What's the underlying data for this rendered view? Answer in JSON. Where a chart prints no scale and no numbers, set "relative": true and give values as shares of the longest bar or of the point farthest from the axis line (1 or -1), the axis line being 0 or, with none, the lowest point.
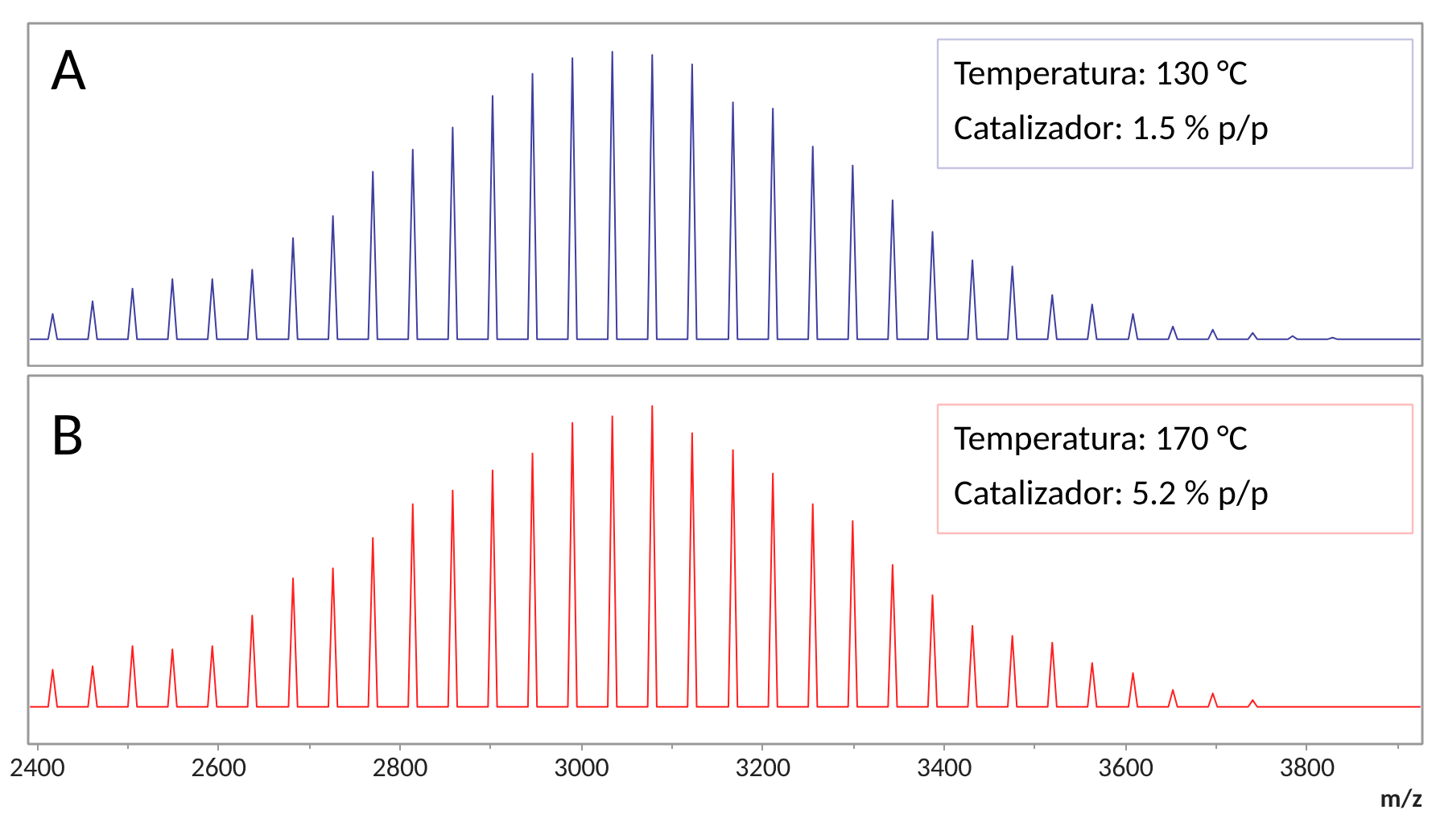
{
  "chart_data": [
    {
      "type": "line",
      "relative": true,
      "xlim": [
        2390,
        3927
      ],
      "xticks": [
        2400,
        2600,
        2800,
        3000,
        3200,
        3400,
        3600,
        3800
      ],
      "tick_labels": false,
      "grid": false,
      "marker": "none",
      "line_style": "solid",
      "annotations": [
        "A",
        "Temperatura: 130 °C",
        "Catalizador: 1.5 % p/p"
      ],
      "series": [
        {
          "color": "#3f3fa0",
          "x": [
            2392,
            2412,
            2417,
            2422,
            2456,
            2461,
            2466,
            2500,
            2505,
            2510,
            2544,
            2549,
            2554,
            2588,
            2593,
            2598,
            2632,
            2637,
            2642,
            2677,
            2682,
            2687,
            2721,
            2726,
            2731,
            2765,
            2770,
            2775,
            2809,
            2814,
            2819,
            2853,
            2858,
            2863,
            2897,
            2902,
            2907,
            2941,
            2946,
            2951,
            2985,
            2990,
            2995,
            3029,
            3034,
            3039,
            3073,
            3078,
            3083,
            3117,
            3122,
            3127,
            3162,
            3167,
            3172,
            3206,
            3211,
            3216,
            3250,
            3255,
            3260,
            3294,
            3299,
            3304,
            3338,
            3343,
            3348,
            3382,
            3387,
            3392,
            3426,
            3431,
            3436,
            3470,
            3475,
            3480,
            3514,
            3519,
            3524,
            3558,
            3563,
            3568,
            3603,
            3608,
            3613,
            3647,
            3652,
            3657,
            3691,
            3696,
            3701,
            3735,
            3740,
            3745,
            3779,
            3784,
            3789,
            3823,
            3828,
            3833,
            3925
          ],
          "values": [
            0.09,
            0.09,
            0.17,
            0.09,
            0.09,
            0.21,
            0.09,
            0.09,
            0.25,
            0.09,
            0.09,
            0.28,
            0.09,
            0.09,
            0.28,
            0.09,
            0.09,
            0.31,
            0.09,
            0.09,
            0.41,
            0.09,
            0.09,
            0.48,
            0.09,
            0.09,
            0.62,
            0.09,
            0.09,
            0.69,
            0.09,
            0.09,
            0.76,
            0.09,
            0.09,
            0.86,
            0.09,
            0.09,
            0.93,
            0.09,
            0.09,
            0.98,
            0.09,
            0.09,
            1.0,
            0.09,
            0.09,
            0.99,
            0.09,
            0.09,
            0.96,
            0.09,
            0.09,
            0.84,
            0.09,
            0.09,
            0.82,
            0.09,
            0.09,
            0.7,
            0.09,
            0.09,
            0.64,
            0.09,
            0.09,
            0.53,
            0.09,
            0.09,
            0.43,
            0.09,
            0.09,
            0.34,
            0.09,
            0.09,
            0.32,
            0.09,
            0.09,
            0.23,
            0.09,
            0.09,
            0.2,
            0.09,
            0.09,
            0.17,
            0.09,
            0.09,
            0.13,
            0.09,
            0.09,
            0.12,
            0.09,
            0.09,
            0.11,
            0.09,
            0.09,
            0.1,
            0.09,
            0.09,
            0.095,
            0.09,
            0.09
          ]
        }
      ]
    },
    {
      "type": "line",
      "relative": true,
      "xlim": [
        2390,
        3927
      ],
      "xticks": [
        2400,
        2600,
        2800,
        3000,
        3200,
        3400,
        3600,
        3800
      ],
      "tick_labels": "x",
      "grid": false,
      "marker": "none",
      "line_style": "solid",
      "xlabel": "m/z",
      "annotations": [
        "B",
        "Temperatura: 170 °C",
        "Catalizador: 5.2 % p/p"
      ],
      "series": [
        {
          "color": "#ff2020",
          "x": [
            2392,
            2412,
            2417,
            2422,
            2456,
            2461,
            2466,
            2500,
            2505,
            2510,
            2544,
            2549,
            2554,
            2588,
            2593,
            2598,
            2632,
            2637,
            2642,
            2677,
            2682,
            2687,
            2721,
            2726,
            2731,
            2765,
            2770,
            2775,
            2809,
            2814,
            2819,
            2853,
            2858,
            2863,
            2897,
            2902,
            2907,
            2941,
            2946,
            2951,
            2985,
            2990,
            2995,
            3029,
            3034,
            3039,
            3073,
            3078,
            3083,
            3117,
            3122,
            3127,
            3162,
            3167,
            3172,
            3206,
            3211,
            3216,
            3250,
            3255,
            3260,
            3294,
            3299,
            3304,
            3338,
            3343,
            3348,
            3382,
            3387,
            3392,
            3426,
            3431,
            3436,
            3470,
            3475,
            3480,
            3514,
            3519,
            3524,
            3558,
            3563,
            3568,
            3603,
            3608,
            3613,
            3647,
            3652,
            3657,
            3691,
            3696,
            3701,
            3735,
            3740,
            3745,
            3925
          ],
          "values": [
            0.11,
            0.11,
            0.22,
            0.11,
            0.11,
            0.23,
            0.11,
            0.11,
            0.29,
            0.11,
            0.11,
            0.28,
            0.11,
            0.11,
            0.29,
            0.11,
            0.11,
            0.38,
            0.11,
            0.11,
            0.49,
            0.11,
            0.11,
            0.52,
            0.11,
            0.11,
            0.61,
            0.11,
            0.11,
            0.71,
            0.11,
            0.11,
            0.75,
            0.11,
            0.11,
            0.81,
            0.11,
            0.11,
            0.86,
            0.11,
            0.11,
            0.95,
            0.11,
            0.11,
            0.97,
            0.11,
            0.11,
            1.0,
            0.11,
            0.11,
            0.92,
            0.11,
            0.11,
            0.87,
            0.11,
            0.11,
            0.8,
            0.11,
            0.11,
            0.71,
            0.11,
            0.11,
            0.66,
            0.11,
            0.11,
            0.53,
            0.11,
            0.11,
            0.44,
            0.11,
            0.11,
            0.35,
            0.11,
            0.11,
            0.32,
            0.11,
            0.11,
            0.3,
            0.11,
            0.11,
            0.24,
            0.11,
            0.11,
            0.21,
            0.11,
            0.11,
            0.16,
            0.11,
            0.11,
            0.15,
            0.11,
            0.11,
            0.13,
            0.11,
            0.11
          ]
        }
      ]
    }
  ]
}
